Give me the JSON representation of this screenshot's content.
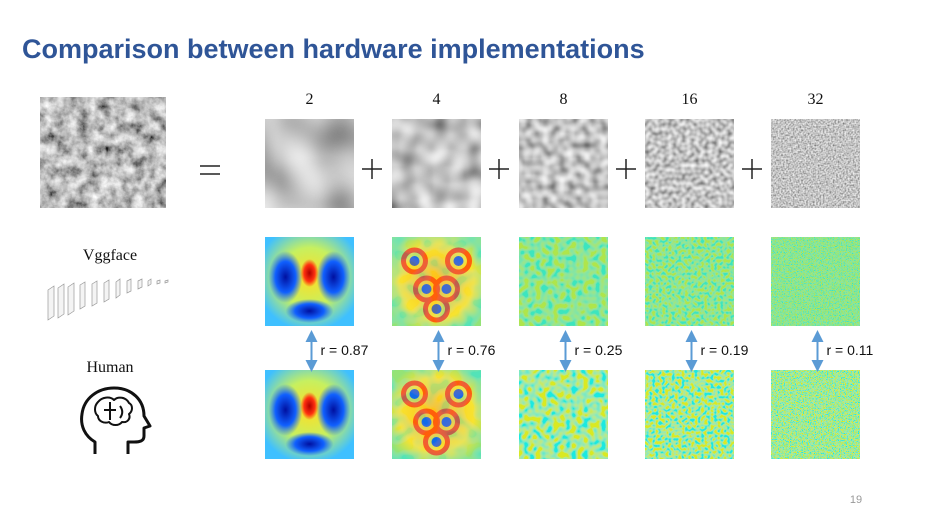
{
  "title": "Comparison between hardware implementations",
  "scales": [
    "2",
    "4",
    "8",
    "16",
    "32"
  ],
  "rows": [
    {
      "label": "Vggface"
    },
    {
      "label": "Human"
    }
  ],
  "correlations": [
    "r = 0.87",
    "r = 0.76",
    "r = 0.25",
    "r = 0.19",
    "r = 0.11"
  ],
  "page_number": "19"
}
